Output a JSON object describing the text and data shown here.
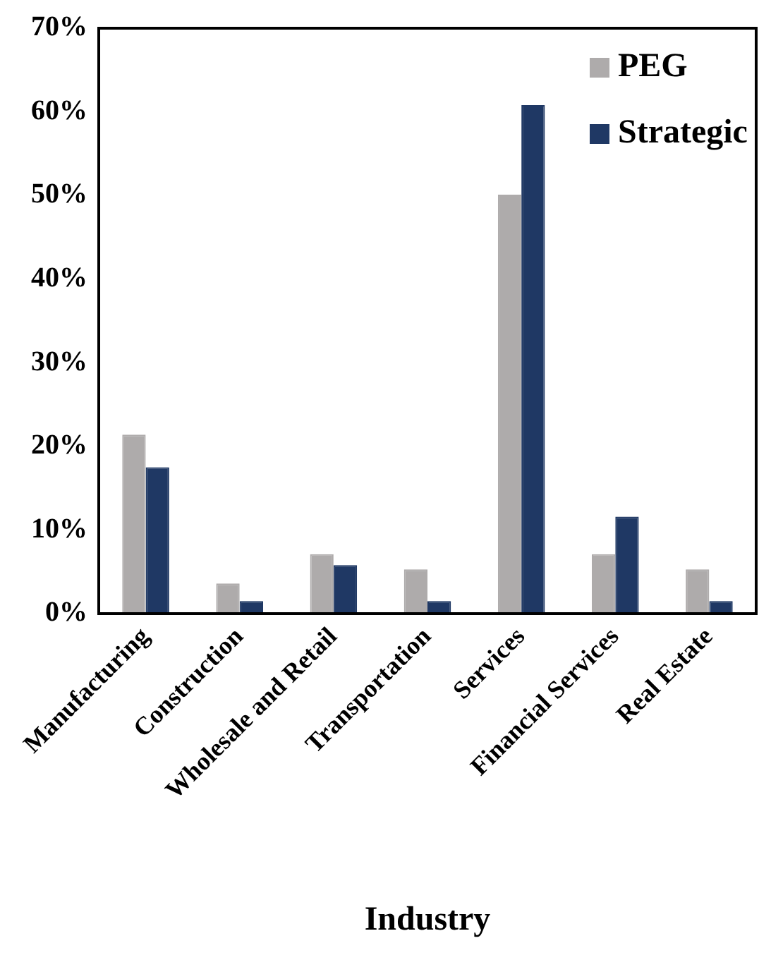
{
  "chart_data": {
    "type": "bar",
    "xlabel": "Industry",
    "categories": [
      "Manufacturing",
      "Construction",
      "Wholesale and Retail",
      "Transportation",
      "Services",
      "Financial Services",
      "Real Estate"
    ],
    "series": [
      {
        "name": "PEG",
        "color": "#aeabab",
        "values": [
          21.4,
          3.6,
          7.1,
          5.3,
          50.1,
          7.1,
          5.3
        ]
      },
      {
        "name": "Strategic",
        "color": "#1f3864",
        "values": [
          17.5,
          1.5,
          5.8,
          1.5,
          60.8,
          11.6,
          1.5
        ]
      }
    ],
    "ylim": [
      0,
      70
    ],
    "yticks": [
      {
        "value": 0,
        "label": "0%"
      },
      {
        "value": 10,
        "label": "10%"
      },
      {
        "value": 20,
        "label": "20%"
      },
      {
        "value": 30,
        "label": "30%"
      },
      {
        "value": 40,
        "label": "40%"
      },
      {
        "value": 50,
        "label": "50%"
      },
      {
        "value": 60,
        "label": "60%"
      },
      {
        "value": 70,
        "label": "70%"
      }
    ],
    "grid": false,
    "legend": "top right"
  }
}
